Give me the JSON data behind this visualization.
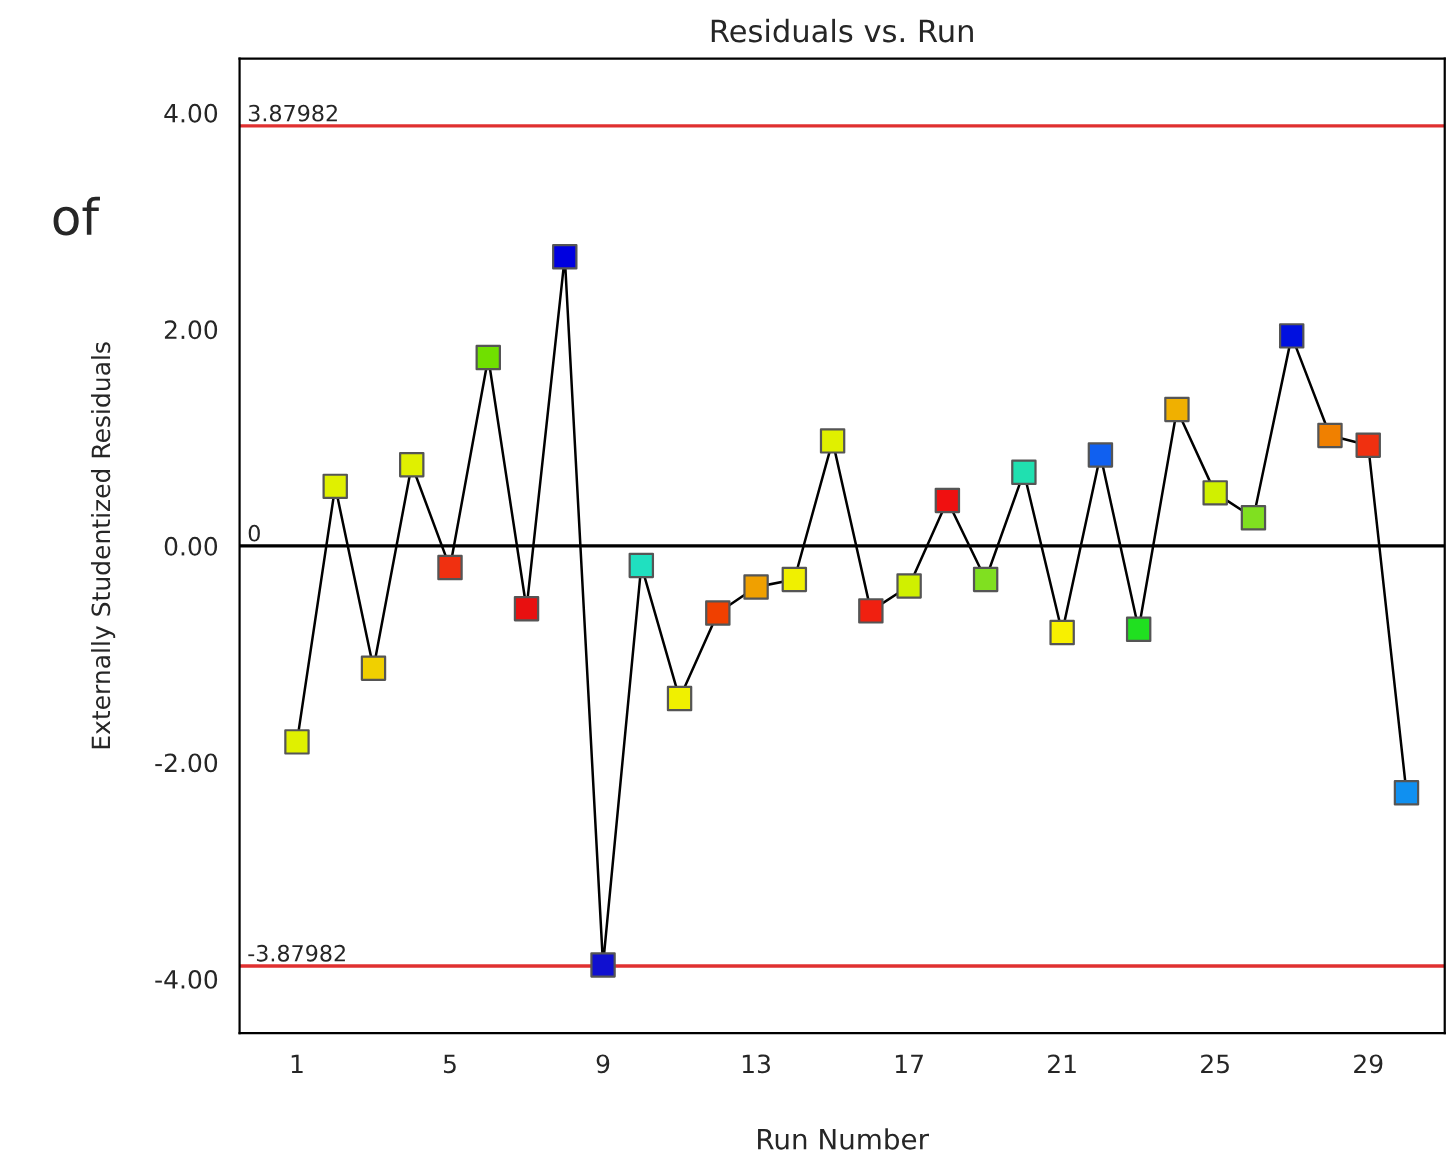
{
  "chart_data": {
    "type": "line",
    "title": "Residuals vs. Run",
    "xlabel": "Run Number",
    "ylabel": "Externally Studentized Residuals",
    "annotations": [
      "of"
    ],
    "x": [
      1,
      2,
      3,
      4,
      5,
      6,
      7,
      8,
      9,
      10,
      11,
      12,
      13,
      14,
      15,
      16,
      17,
      18,
      19,
      20,
      21,
      22,
      23,
      24,
      25,
      26,
      27,
      28,
      29,
      30
    ],
    "series": [
      {
        "color": "#000000",
        "marker": "square",
        "values": [
          -1.81,
          0.55,
          -1.13,
          0.75,
          -0.2,
          1.74,
          -0.58,
          2.67,
          -3.87,
          -0.18,
          -1.41,
          -0.62,
          -0.38,
          -0.31,
          0.97,
          -0.6,
          -0.37,
          0.42,
          -0.31,
          0.68,
          -0.8,
          0.84,
          -0.77,
          1.26,
          0.49,
          0.26,
          1.94,
          1.02,
          0.93,
          -2.28
        ],
        "colors": [
          "#e0f000",
          "#e0f000",
          "#f0d000",
          "#e0f000",
          "#f03010",
          "#70e000",
          "#e81010",
          "#0000e0",
          "#1010d0",
          "#20e0c0",
          "#f0f000",
          "#f04000",
          "#f0a000",
          "#f0f000",
          "#e0f000",
          "#f02010",
          "#d0f000",
          "#f01010",
          "#80e020",
          "#20e0b0",
          "#f8f000",
          "#1060f0",
          "#20e020",
          "#f0b000",
          "#d0f000",
          "#80e020",
          "#0010e0",
          "#f08000",
          "#f03010",
          "#1090f0"
        ]
      }
    ],
    "xlim": [
      -0.5,
      31
    ],
    "xticks": [
      1,
      5,
      9,
      13,
      17,
      21,
      25,
      29
    ],
    "ylim": [
      -4.5,
      4.5
    ],
    "yticks": [
      {
        "value": -4,
        "label": "-4.00"
      },
      {
        "value": -2,
        "label": "-2.00"
      },
      {
        "value": 0,
        "label": "0.00"
      },
      {
        "value": 2,
        "label": "2.00"
      },
      {
        "value": 4,
        "label": "4.00"
      }
    ],
    "ref_lines": [
      {
        "axis": "y",
        "value": 3.87982,
        "label": "3.87982",
        "color": "#e03030"
      },
      {
        "axis": "y",
        "value": 0,
        "label": "0",
        "color": "#000000"
      },
      {
        "axis": "y",
        "value": -3.87982,
        "label": "-3.87982",
        "color": "#e03030"
      }
    ],
    "grid": false,
    "legend": false
  }
}
